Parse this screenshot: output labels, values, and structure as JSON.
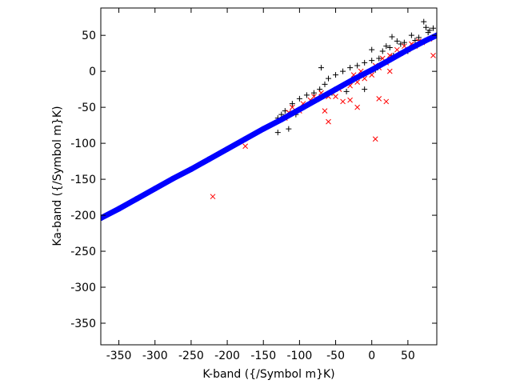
{
  "chart_data": {
    "type": "scatter",
    "title": "",
    "xlabel": "K-band ({/Symbol m}K)",
    "ylabel": "Ka-band ({/Symbol m}K)",
    "xlim": [
      -375,
      90
    ],
    "ylim": [
      -380,
      88
    ],
    "xticks": [
      -350,
      -300,
      -250,
      -200,
      -150,
      -100,
      -50,
      0,
      50
    ],
    "yticks": [
      50,
      0,
      -50,
      -100,
      -150,
      -200,
      -250,
      -300,
      -350
    ],
    "grid": false,
    "legend": "none",
    "series": [
      {
        "marker": "plus",
        "color": "#000000",
        "points": [
          [
            72,
            69
          ],
          [
            75,
            61
          ],
          [
            80,
            57
          ],
          [
            85,
            60
          ],
          [
            78,
            54
          ],
          [
            65,
            47
          ],
          [
            55,
            50
          ],
          [
            60,
            43
          ],
          [
            40,
            38
          ],
          [
            35,
            42
          ],
          [
            25,
            33
          ],
          [
            30,
            22
          ],
          [
            15,
            28
          ],
          [
            10,
            18
          ],
          [
            0,
            15
          ],
          [
            -10,
            12
          ],
          [
            -20,
            8
          ],
          [
            -30,
            5
          ],
          [
            -40,
            0
          ],
          [
            -50,
            -5
          ],
          [
            -60,
            -10
          ],
          [
            -70,
            5
          ],
          [
            -72,
            -25
          ],
          [
            -55,
            -30
          ],
          [
            -80,
            -30
          ],
          [
            -90,
            -33
          ],
          [
            -100,
            -38
          ],
          [
            -110,
            -45
          ],
          [
            -120,
            -55
          ],
          [
            -125,
            -60
          ],
          [
            -130,
            -65
          ],
          [
            -130,
            -85
          ],
          [
            -115,
            -80
          ],
          [
            -105,
            -60
          ],
          [
            -40,
            -20
          ],
          [
            -35,
            -28
          ],
          [
            20,
            35
          ],
          [
            45,
            40
          ],
          [
            -10,
            -25
          ],
          [
            5,
            2
          ],
          [
            -25,
            -12
          ],
          [
            50,
            28
          ],
          [
            -65,
            -18
          ],
          [
            0,
            30
          ],
          [
            28,
            48
          ]
        ]
      },
      {
        "marker": "x",
        "color": "#ff0000",
        "points": [
          [
            -220,
            -174
          ],
          [
            -175,
            -104
          ],
          [
            5,
            -94
          ],
          [
            -60,
            -70
          ],
          [
            -65,
            -55
          ],
          [
            -20,
            -50
          ],
          [
            10,
            -38
          ],
          [
            20,
            -42
          ],
          [
            -30,
            -40
          ],
          [
            -40,
            -42
          ],
          [
            -50,
            -35
          ],
          [
            -80,
            -35
          ],
          [
            -85,
            -40
          ],
          [
            -95,
            -45
          ],
          [
            -110,
            -50
          ],
          [
            -115,
            -57
          ],
          [
            -120,
            -65
          ],
          [
            -100,
            -55
          ],
          [
            -30,
            -20
          ],
          [
            -20,
            -15
          ],
          [
            -10,
            -10
          ],
          [
            0,
            -5
          ],
          [
            10,
            5
          ],
          [
            20,
            12
          ],
          [
            30,
            20
          ],
          [
            40,
            25
          ],
          [
            50,
            30
          ],
          [
            60,
            35
          ],
          [
            70,
            40
          ],
          [
            80,
            45
          ],
          [
            85,
            22
          ],
          [
            -45,
            -25
          ],
          [
            -55,
            -30
          ],
          [
            -60,
            -35
          ],
          [
            -70,
            -30
          ],
          [
            -25,
            -5
          ],
          [
            -15,
            0
          ],
          [
            5,
            8
          ],
          [
            15,
            18
          ],
          [
            25,
            22
          ],
          [
            35,
            30
          ],
          [
            45,
            35
          ],
          [
            55,
            38
          ],
          [
            65,
            42
          ],
          [
            25,
            0
          ]
        ]
      },
      {
        "marker": "circle",
        "color": "#0000ff",
        "points": [
          [
            -375,
            -204
          ],
          [
            -350,
            -191
          ],
          [
            -325,
            -177
          ],
          [
            -300,
            -163
          ],
          [
            -275,
            -149
          ],
          [
            -250,
            -136
          ],
          [
            -225,
            -122
          ],
          [
            -200,
            -108
          ],
          [
            -175,
            -94
          ],
          [
            -150,
            -80
          ],
          [
            -125,
            -67
          ],
          [
            -100,
            -53
          ],
          [
            -75,
            -39
          ],
          [
            -50,
            -25
          ],
          [
            -25,
            -11
          ],
          [
            0,
            2
          ],
          [
            25,
            16
          ],
          [
            50,
            30
          ],
          [
            75,
            43
          ],
          [
            90,
            50
          ]
        ]
      }
    ]
  }
}
